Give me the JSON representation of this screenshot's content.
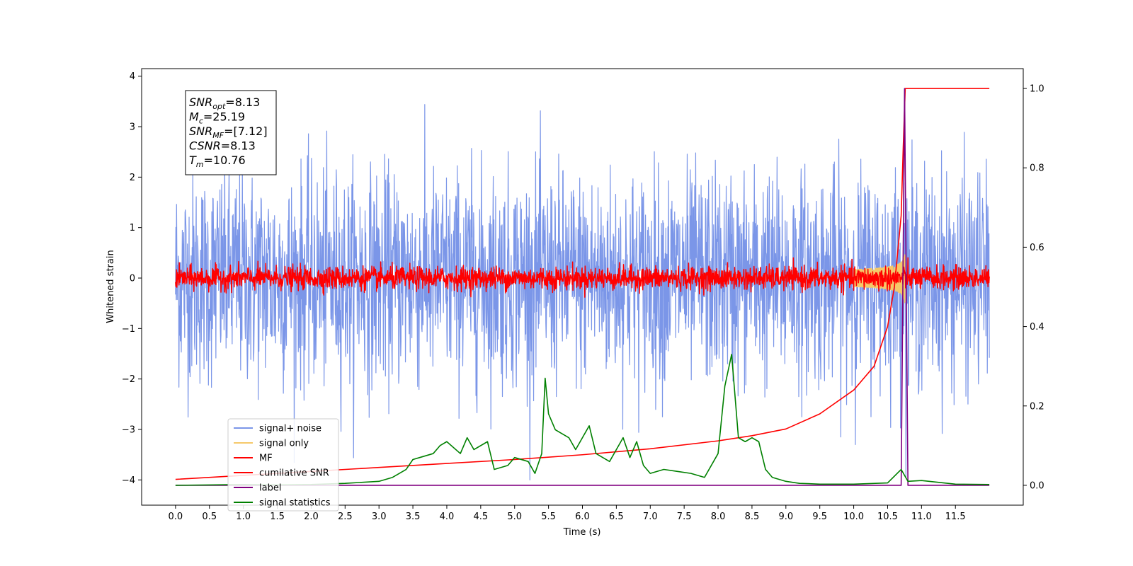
{
  "chart_data": {
    "type": "line",
    "xlabel": "Time (s)",
    "ylabel": "Whitened strain",
    "xlim": [
      -0.5,
      12.5
    ],
    "ylim": [
      -4.5,
      4.15
    ],
    "ylim_right": [
      -0.05,
      1.05
    ],
    "x_ticks": [
      "0.0",
      "0.5",
      "1.0",
      "1.5",
      "2.0",
      "2.5",
      "3.0",
      "3.5",
      "4.0",
      "4.5",
      "5.0",
      "5.5",
      "6.0",
      "6.5",
      "7.0",
      "7.5",
      "8.0",
      "8.5",
      "9.0",
      "9.5",
      "10.0",
      "10.5",
      "11.0",
      "11.5"
    ],
    "y_ticks_left": [
      "−4",
      "−3",
      "−2",
      "−1",
      "0",
      "1",
      "2",
      "3",
      "4"
    ],
    "y_ticks_right": [
      "0.0",
      "0.2",
      "0.4",
      "0.6",
      "0.8",
      "1.0"
    ],
    "grid": false,
    "legend_placement": "lower-left",
    "annotation": [
      {
        "base": "SNR",
        "sub": "opt",
        "value": "=8.13"
      },
      {
        "base": "M",
        "sub": "c",
        "value": "=25.19"
      },
      {
        "base": "SNR",
        "sub": "MF",
        "value": "=[7.12]"
      },
      {
        "base": "CSNR",
        "sub": "",
        "value": "=8.13"
      },
      {
        "base": "T",
        "sub": "m",
        "value": "=10.76"
      }
    ],
    "series": [
      {
        "name": "signal+ noise",
        "color": "#7b96e8",
        "axis": "left",
        "kind": "noise",
        "amplitude": 2.1,
        "range": [
          0.0,
          12.0
        ]
      },
      {
        "name": "signal only",
        "color": "#f5c96a",
        "axis": "left",
        "kind": "chirp",
        "peak_time": 10.76,
        "peak_amplitude": 0.5
      },
      {
        "name": "MF",
        "color": "#ff0000",
        "axis": "left",
        "kind": "noise",
        "amplitude": 0.25,
        "range": [
          0.0,
          12.0
        ]
      },
      {
        "name": "cumilative SNR",
        "color": "#ff0000",
        "axis": "right",
        "x": [
          0.0,
          1.0,
          2.0,
          3.0,
          4.0,
          5.0,
          6.0,
          7.0,
          8.0,
          8.5,
          9.0,
          9.5,
          10.0,
          10.3,
          10.5,
          10.6,
          10.7,
          10.73,
          10.76,
          12.0
        ],
        "values": [
          0.015,
          0.025,
          0.035,
          0.045,
          0.055,
          0.065,
          0.077,
          0.092,
          0.112,
          0.125,
          0.142,
          0.18,
          0.24,
          0.3,
          0.4,
          0.5,
          0.68,
          0.85,
          1.0,
          1.0
        ]
      },
      {
        "name": "label",
        "color": "#800080",
        "axis": "right",
        "x": [
          0.0,
          10.7,
          10.75,
          10.8,
          12.0
        ],
        "values": [
          0.0,
          0.0,
          1.0,
          0.0,
          0.0
        ]
      },
      {
        "name": "signal statistics",
        "color": "#008000",
        "axis": "right",
        "x": [
          0.0,
          0.5,
          1.0,
          1.5,
          2.0,
          2.5,
          3.0,
          3.2,
          3.4,
          3.5,
          3.6,
          3.8,
          3.9,
          4.0,
          4.2,
          4.3,
          4.4,
          4.6,
          4.7,
          4.9,
          5.0,
          5.2,
          5.3,
          5.4,
          5.45,
          5.5,
          5.6,
          5.8,
          5.9,
          6.0,
          6.1,
          6.2,
          6.3,
          6.4,
          6.5,
          6.6,
          6.7,
          6.8,
          6.9,
          7.0,
          7.2,
          7.4,
          7.6,
          7.8,
          8.0,
          8.1,
          8.2,
          8.3,
          8.4,
          8.5,
          8.6,
          8.7,
          8.8,
          9.0,
          9.2,
          9.5,
          10.0,
          10.5,
          10.7,
          10.8,
          11.0,
          11.5,
          12.0
        ],
        "values": [
          0.0,
          0.001,
          0.002,
          0.001,
          0.002,
          0.005,
          0.01,
          0.02,
          0.04,
          0.065,
          0.07,
          0.08,
          0.1,
          0.11,
          0.08,
          0.12,
          0.09,
          0.11,
          0.04,
          0.05,
          0.07,
          0.06,
          0.03,
          0.08,
          0.27,
          0.18,
          0.14,
          0.12,
          0.09,
          0.12,
          0.15,
          0.08,
          0.07,
          0.06,
          0.09,
          0.12,
          0.07,
          0.11,
          0.05,
          0.03,
          0.04,
          0.035,
          0.03,
          0.02,
          0.08,
          0.25,
          0.33,
          0.12,
          0.11,
          0.12,
          0.11,
          0.04,
          0.02,
          0.01,
          0.005,
          0.003,
          0.003,
          0.006,
          0.04,
          0.01,
          0.012,
          0.003,
          0.002
        ]
      }
    ]
  }
}
